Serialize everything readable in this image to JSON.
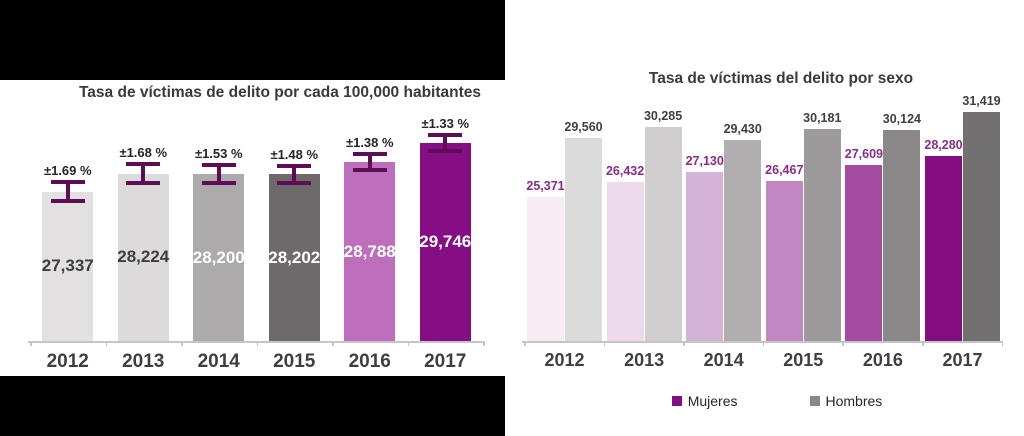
{
  "chart_data": [
    {
      "type": "bar",
      "title": "Tasa de víctimas de delito por cada 100,000 habitantes",
      "categories": [
        "2012",
        "2013",
        "2014",
        "2015",
        "2016",
        "2017"
      ],
      "values": [
        27337,
        28224,
        28200,
        28202,
        28788,
        29746
      ],
      "value_labels": [
        "27,337",
        "28,224",
        "28,200",
        "28,202",
        "28,788",
        "29,746"
      ],
      "error_margin_labels": [
        "±1.69 %",
        "±1.68 %",
        "±1.53 %",
        "±1.48 %",
        "±1.38 %",
        "±1.33 %"
      ],
      "error_margin_pct": [
        1.69,
        1.68,
        1.53,
        1.48,
        1.38,
        1.33
      ],
      "bar_colors": [
        "#e2e0e1",
        "#dcdadb",
        "#acaaab",
        "#6e6a6b",
        "#bd6fbd",
        "#860e85"
      ],
      "value_label_colors": [
        "#3d3d3d",
        "#3d3d3d",
        "#ffffff",
        "#ffffff",
        "#ffffff",
        "#ffffff"
      ],
      "error_bar_color": "#5e0d55",
      "legend": null,
      "grid": "off",
      "y_axis_labels": "none (values shown on bars, baseline not at zero)"
    },
    {
      "type": "bar",
      "title": "Tasa de víctimas del delito por sexo",
      "categories": [
        "2012",
        "2013",
        "2014",
        "2015",
        "2016",
        "2017"
      ],
      "series": [
        {
          "name": "Mujeres",
          "values": [
            25371,
            26432,
            27130,
            26467,
            27609,
            28280
          ],
          "value_labels": [
            "25,371",
            "26,432",
            "27,130",
            "26,467",
            "27,609",
            "28,280"
          ],
          "bar_colors": [
            "#f6ecf4",
            "#ecd9ea",
            "#d4b3d8",
            "#c087c2",
            "#a44ba4",
            "#830e81"
          ],
          "value_label_color": "#8b2a8b",
          "legend_color": "#830e81"
        },
        {
          "name": "Hombres",
          "values": [
            29560,
            30285,
            29430,
            30181,
            30124,
            31419
          ],
          "value_labels": [
            "29,560",
            "30,285",
            "29,430",
            "30,181",
            "30,124",
            "31,419"
          ],
          "bar_colors": [
            "#dcdbdc",
            "#cfcdce",
            "#b0aeaf",
            "#9d9a9b",
            "#8a8788",
            "#737071"
          ],
          "value_label_color": "#3f3f3f",
          "legend_color": "#8a8788"
        }
      ],
      "legend_position": "bottom",
      "grid": "off",
      "y_axis_labels": "none (values shown above bars, baseline not at zero)"
    }
  ]
}
